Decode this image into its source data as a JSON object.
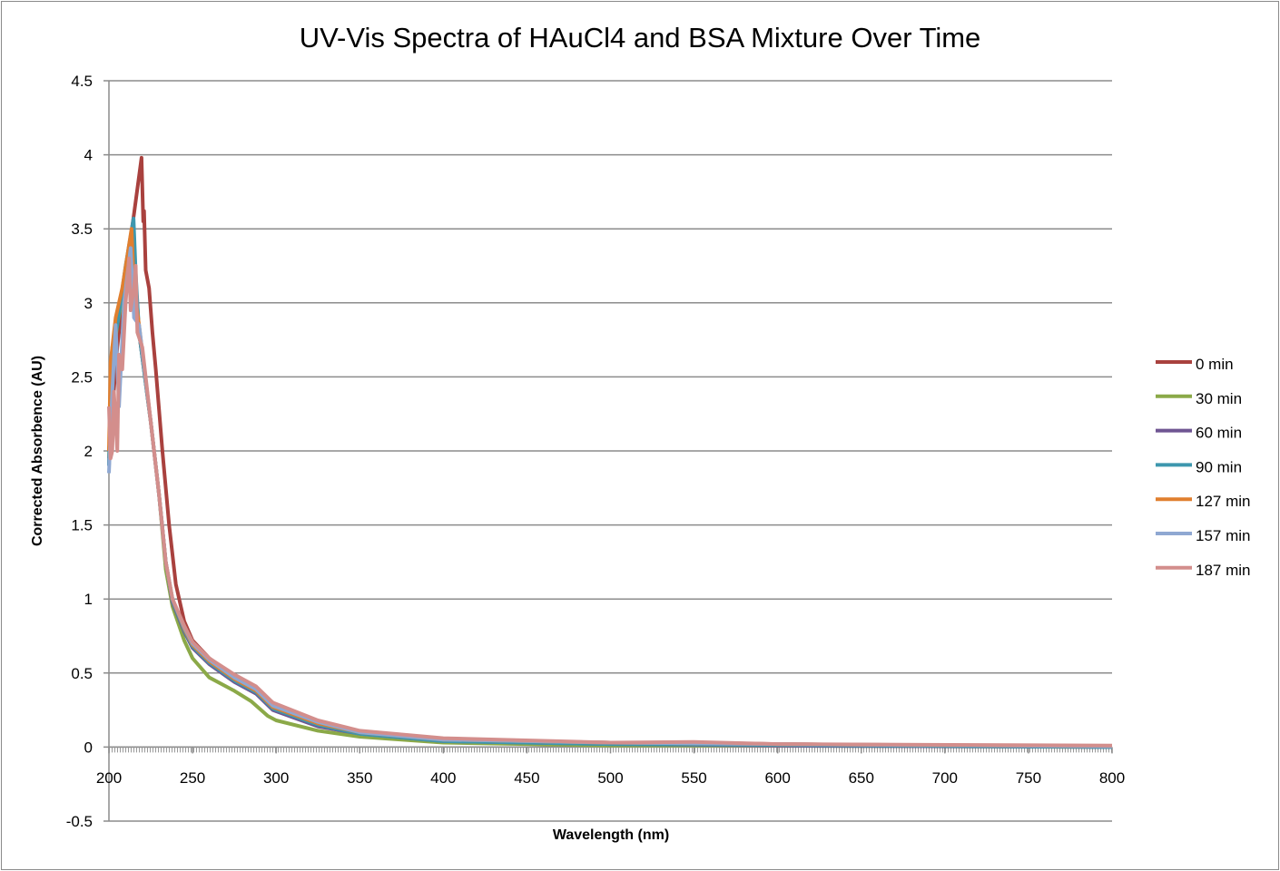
{
  "chart_data": {
    "type": "line",
    "title": "UV-Vis Spectra of HAuCl4 and BSA Mixture Over Time",
    "xlabel": "Wavelength (nm)",
    "ylabel": "Corrected Absorbence (AU)",
    "xlim": [
      200,
      800
    ],
    "ylim": [
      -0.5,
      4.5
    ],
    "xticks": [
      "200",
      "250",
      "300",
      "350",
      "400",
      "450",
      "500",
      "550",
      "600",
      "650",
      "700",
      "750",
      "800"
    ],
    "yticks": [
      "-0.5",
      "0",
      "0.5",
      "1",
      "1.5",
      "2",
      "2.5",
      "3",
      "3.5",
      "4",
      "4.5"
    ],
    "grid": "horizontal",
    "legend": "right",
    "series": [
      {
        "name": "0 min",
        "color": "#A9413E",
        "points": [
          [
            200,
            2.0
          ],
          [
            205,
            2.7
          ],
          [
            210,
            3.2
          ],
          [
            215,
            3.6
          ],
          [
            219.5,
            3.98
          ],
          [
            220.5,
            3.55
          ],
          [
            221,
            3.62
          ],
          [
            222,
            3.22
          ],
          [
            224,
            3.1
          ],
          [
            226,
            2.8
          ],
          [
            228,
            2.55
          ],
          [
            232,
            2.0
          ],
          [
            236,
            1.5
          ],
          [
            240,
            1.1
          ],
          [
            245,
            0.85
          ],
          [
            250,
            0.72
          ],
          [
            260,
            0.6
          ],
          [
            275,
            0.48
          ],
          [
            288,
            0.4
          ],
          [
            300,
            0.28
          ],
          [
            325,
            0.17
          ],
          [
            350,
            0.1
          ],
          [
            400,
            0.05
          ],
          [
            500,
            0.03
          ],
          [
            550,
            0.03
          ],
          [
            600,
            0.02
          ],
          [
            700,
            0.01
          ],
          [
            800,
            0.0
          ]
        ]
      },
      {
        "name": "30 min",
        "color": "#8BA948",
        "points": [
          [
            200,
            1.95
          ],
          [
            202,
            2.6
          ],
          [
            205,
            2.85
          ],
          [
            210,
            3.15
          ],
          [
            214,
            3.45
          ],
          [
            216,
            3.1
          ],
          [
            218,
            2.8
          ],
          [
            225,
            2.2
          ],
          [
            230,
            1.7
          ],
          [
            234,
            1.2
          ],
          [
            238,
            0.95
          ],
          [
            245,
            0.72
          ],
          [
            250,
            0.6
          ],
          [
            260,
            0.47
          ],
          [
            275,
            0.38
          ],
          [
            285,
            0.31
          ],
          [
            295,
            0.21
          ],
          [
            300,
            0.18
          ],
          [
            325,
            0.11
          ],
          [
            350,
            0.07
          ],
          [
            400,
            0.03
          ],
          [
            500,
            0.01
          ],
          [
            600,
            0.01
          ],
          [
            800,
            0.0
          ]
        ]
      },
      {
        "name": "60 min",
        "color": "#6F5592",
        "points": [
          [
            200,
            1.9
          ],
          [
            202,
            2.6
          ],
          [
            205,
            2.9
          ],
          [
            210,
            3.2
          ],
          [
            214,
            3.5
          ],
          [
            216,
            3.15
          ],
          [
            218,
            2.8
          ],
          [
            225,
            2.2
          ],
          [
            230,
            1.7
          ],
          [
            234,
            1.25
          ],
          [
            238,
            0.98
          ],
          [
            245,
            0.78
          ],
          [
            250,
            0.67
          ],
          [
            260,
            0.56
          ],
          [
            275,
            0.44
          ],
          [
            288,
            0.36
          ],
          [
            298,
            0.25
          ],
          [
            325,
            0.14
          ],
          [
            350,
            0.09
          ],
          [
            400,
            0.04
          ],
          [
            500,
            0.02
          ],
          [
            600,
            0.01
          ],
          [
            800,
            0.0
          ]
        ]
      },
      {
        "name": "90 min",
        "color": "#3D97AE",
        "points": [
          [
            200,
            1.9
          ],
          [
            202,
            2.7
          ],
          [
            205,
            2.85
          ],
          [
            210,
            3.25
          ],
          [
            214.7,
            3.57
          ],
          [
            216,
            3.2
          ],
          [
            218,
            2.8
          ],
          [
            225,
            2.2
          ],
          [
            230,
            1.7
          ],
          [
            234,
            1.25
          ],
          [
            238,
            0.99
          ],
          [
            245,
            0.79
          ],
          [
            250,
            0.68
          ],
          [
            260,
            0.57
          ],
          [
            275,
            0.45
          ],
          [
            288,
            0.37
          ],
          [
            298,
            0.26
          ],
          [
            325,
            0.15
          ],
          [
            350,
            0.09
          ],
          [
            400,
            0.04
          ],
          [
            500,
            0.02
          ],
          [
            600,
            0.015
          ],
          [
            800,
            0.0
          ]
        ]
      },
      {
        "name": "127 min",
        "color": "#E07F2F",
        "points": [
          [
            200,
            2.0
          ],
          [
            201,
            2.6
          ],
          [
            204,
            2.9
          ],
          [
            208,
            3.1
          ],
          [
            213.5,
            3.5
          ],
          [
            215,
            3.1
          ],
          [
            218,
            2.85
          ],
          [
            225,
            2.2
          ],
          [
            230,
            1.7
          ],
          [
            234,
            1.25
          ],
          [
            238,
            1.0
          ],
          [
            245,
            0.8
          ],
          [
            250,
            0.69
          ],
          [
            260,
            0.58
          ],
          [
            275,
            0.46
          ],
          [
            288,
            0.38
          ],
          [
            298,
            0.27
          ],
          [
            325,
            0.16
          ],
          [
            350,
            0.1
          ],
          [
            400,
            0.05
          ],
          [
            500,
            0.03
          ],
          [
            600,
            0.02
          ],
          [
            800,
            0.005
          ]
        ]
      },
      {
        "name": "157 min",
        "color": "#8FA8D2",
        "points": [
          [
            200,
            1.85
          ],
          [
            202,
            2.4
          ],
          [
            204,
            2.85
          ],
          [
            206,
            2.3
          ],
          [
            209,
            3.0
          ],
          [
            213,
            3.37
          ],
          [
            215,
            2.9
          ],
          [
            218,
            2.85
          ],
          [
            225,
            2.2
          ],
          [
            230,
            1.7
          ],
          [
            234,
            1.25
          ],
          [
            238,
            1.0
          ],
          [
            245,
            0.81
          ],
          [
            250,
            0.7
          ],
          [
            260,
            0.59
          ],
          [
            275,
            0.47
          ],
          [
            288,
            0.39
          ],
          [
            298,
            0.28
          ],
          [
            325,
            0.17
          ],
          [
            350,
            0.1
          ],
          [
            400,
            0.05
          ],
          [
            500,
            0.03
          ],
          [
            600,
            0.02
          ],
          [
            800,
            0.005
          ]
        ]
      },
      {
        "name": "187 min",
        "color": "#D38E8C",
        "points": [
          [
            200,
            2.3
          ],
          [
            201,
            1.95
          ],
          [
            202,
            2.0
          ],
          [
            203,
            2.4
          ],
          [
            205,
            2.0
          ],
          [
            206,
            2.65
          ],
          [
            208,
            2.55
          ],
          [
            210,
            3.0
          ],
          [
            212,
            3.3
          ],
          [
            213,
            2.95
          ],
          [
            215,
            3.1
          ],
          [
            216,
            3.25
          ],
          [
            217,
            2.8
          ],
          [
            220,
            2.7
          ],
          [
            225,
            2.2
          ],
          [
            230,
            1.7
          ],
          [
            234,
            1.25
          ],
          [
            238,
            1.0
          ],
          [
            245,
            0.82
          ],
          [
            250,
            0.71
          ],
          [
            260,
            0.6
          ],
          [
            275,
            0.49
          ],
          [
            288,
            0.41
          ],
          [
            298,
            0.3
          ],
          [
            325,
            0.18
          ],
          [
            350,
            0.11
          ],
          [
            400,
            0.06
          ],
          [
            500,
            0.03
          ],
          [
            550,
            0.035
          ],
          [
            600,
            0.02
          ],
          [
            800,
            0.01
          ]
        ]
      }
    ]
  }
}
